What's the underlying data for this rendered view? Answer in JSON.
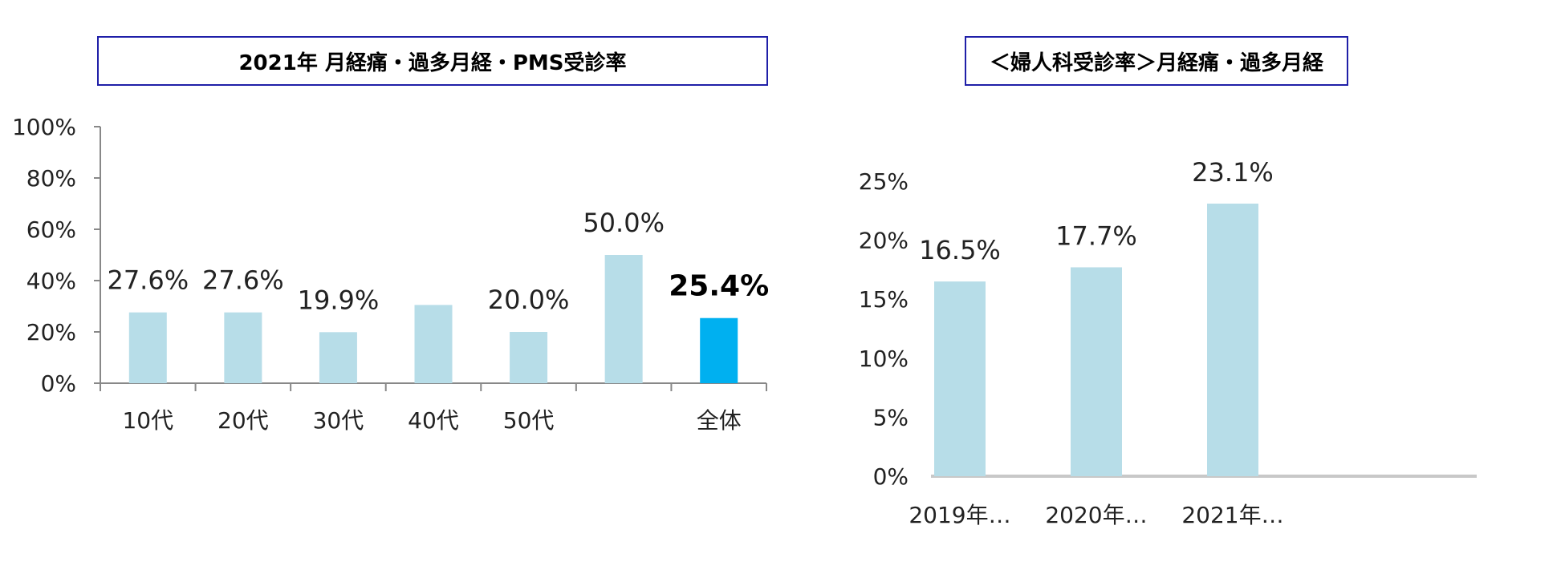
{
  "colors": {
    "bar": "#b7dde8",
    "highlight": "#00b0f0",
    "axis": "#888888",
    "title_border": "#1f1fa8"
  },
  "chart_data": [
    {
      "type": "bar",
      "title": "2021年  月経痛・過多月経・PMS受診率",
      "categories": [
        "10代",
        "20代",
        "30代",
        "40代",
        "50代",
        "",
        "全体"
      ],
      "values": [
        27.6,
        27.6,
        19.9,
        30.5,
        20.0,
        50.0,
        25.4
      ],
      "data_labels": [
        "27.6%",
        "27.6%",
        "19.9%",
        "",
        "20.0%",
        "50.0%",
        "25.4%"
      ],
      "highlight_index": 6,
      "ylim": [
        0,
        100
      ],
      "yticks": [
        "0%",
        "20%",
        "40%",
        "60%",
        "80%",
        "100%"
      ],
      "ytick_values": [
        0,
        20,
        40,
        60,
        80,
        100
      ],
      "xlabel": "",
      "ylabel": "",
      "grid": false
    },
    {
      "type": "bar",
      "title": "＜婦人科受診率＞月経痛・過多月経",
      "categories": [
        "2019年…",
        "2020年…",
        "2021年…"
      ],
      "values": [
        16.5,
        17.7,
        23.1
      ],
      "data_labels": [
        "16.5%",
        "17.7%",
        "23.1%"
      ],
      "ylim": [
        0,
        25
      ],
      "yticks": [
        "0%",
        "5%",
        "10%",
        "15%",
        "20%",
        "25%"
      ],
      "ytick_values": [
        0,
        5,
        10,
        15,
        20,
        25
      ],
      "xlabel": "",
      "ylabel": "",
      "grid": false
    }
  ]
}
